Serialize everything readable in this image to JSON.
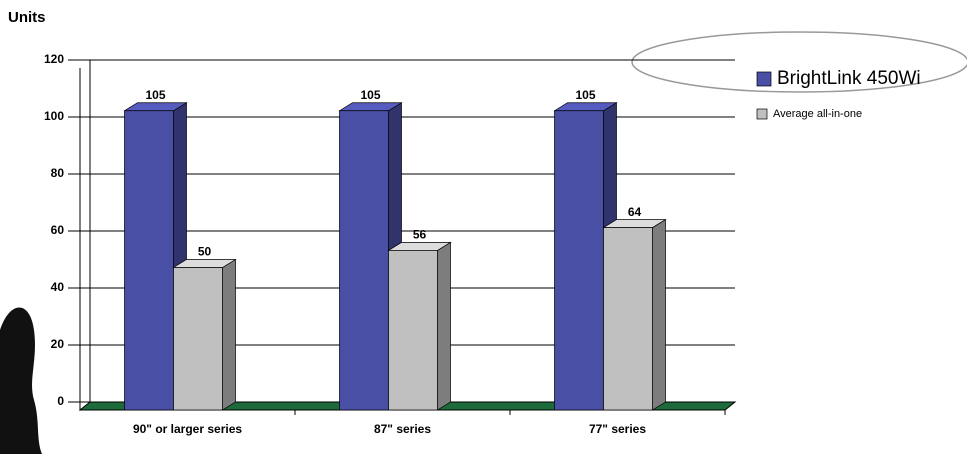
{
  "chart_data": {
    "type": "bar3d",
    "y_axis_title": "Units",
    "categories": [
      "90\" or larger series",
      "87\" series",
      "77\" series"
    ],
    "series": [
      {
        "name": "BrightLink 450Wi",
        "color": "#4a4fa6",
        "values": [
          105,
          105,
          105
        ]
      },
      {
        "name": "Average all-in-one",
        "color": "#c0c0c0",
        "values": [
          50,
          56,
          64
        ]
      }
    ],
    "ylim": [
      0,
      120
    ],
    "yticks": [
      0,
      20,
      40,
      60,
      80,
      100,
      120
    ],
    "grid": true,
    "legend": "top-right"
  }
}
